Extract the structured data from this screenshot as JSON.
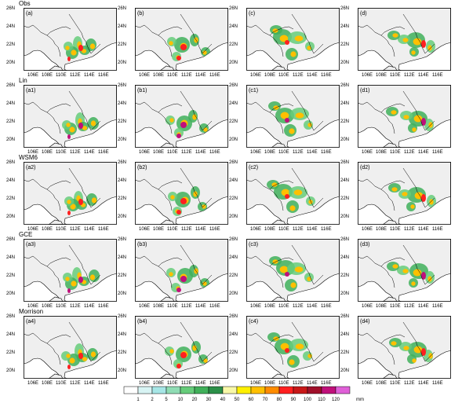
{
  "rows": [
    {
      "title": "Obs",
      "labels": [
        "(a)",
        "(b)",
        "(c)",
        "(d)"
      ]
    },
    {
      "title": "Lin",
      "labels": [
        "(a1)",
        "(b1)",
        "(c1)",
        "(d1)"
      ]
    },
    {
      "title": "WSM6",
      "labels": [
        "(a2)",
        "(b2)",
        "(c2)",
        "(d2)"
      ]
    },
    {
      "title": "GCE",
      "labels": [
        "(a3)",
        "(b3)",
        "(c3)",
        "(d3)"
      ]
    },
    {
      "title": "Morrison",
      "labels": [
        "(a4)",
        "(b4)",
        "(c4)",
        "(d4)"
      ]
    }
  ],
  "lat_ticks": [
    "26N",
    "24N",
    "22N",
    "20N"
  ],
  "lon_ticks": [
    "106E",
    "108E",
    "110E",
    "112E",
    "114E",
    "116E"
  ],
  "colorbar": {
    "levels": [
      "1",
      "2",
      "5",
      "10",
      "20",
      "30",
      "40",
      "50",
      "60",
      "70",
      "80",
      "90",
      "100",
      "110",
      "120"
    ],
    "unit": "mm",
    "colors": [
      "#ffffff",
      "#d8f4f4",
      "#a6e6e6",
      "#8fdcb4",
      "#66cc7a",
      "#40b05a",
      "#2b8f48",
      "#f8f8a8",
      "#fff000",
      "#ffc000",
      "#ff8c00",
      "#ff2020",
      "#c81818",
      "#a0102a",
      "#c0107a",
      "#e060d8"
    ]
  },
  "map_colors": {
    "land": "#efefef",
    "sea": "#ffffff",
    "border": "#000000"
  }
}
